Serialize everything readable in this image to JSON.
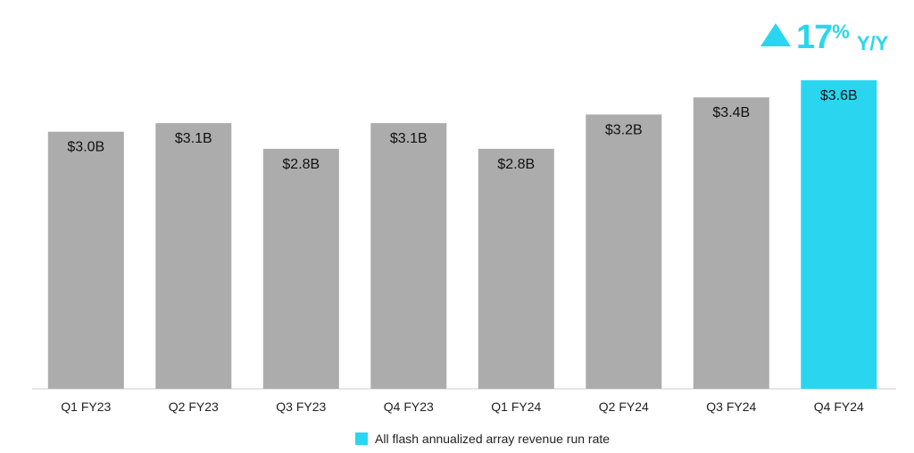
{
  "chart_data": {
    "type": "bar",
    "categories": [
      "Q1 FY23",
      "Q2 FY23",
      "Q3 FY23",
      "Q4 FY23",
      "Q1 FY24",
      "Q2 FY24",
      "Q3 FY24",
      "Q4 FY24"
    ],
    "values": [
      3.0,
      3.1,
      2.8,
      3.1,
      2.8,
      3.2,
      3.4,
      3.6
    ],
    "data_labels": [
      "$3.0B",
      "$3.1B",
      "$2.8B",
      "$3.1B",
      "$2.8B",
      "$3.2B",
      "$3.4B",
      "$3.6B"
    ],
    "highlight_index": 7,
    "ylim": [
      0,
      3.6
    ],
    "unit": "$B",
    "colors": {
      "default": "#acacac",
      "highlight": "#2ad6ef",
      "axis": "#cccccc"
    },
    "legend": {
      "label": "All flash annualized array revenue run rate",
      "position": "bottom-center"
    }
  },
  "growth_callout": {
    "value": "17",
    "percent_sign": "%",
    "suffix": "Y/Y",
    "icon": "up-triangle-icon",
    "color": "#2ad6ef"
  }
}
